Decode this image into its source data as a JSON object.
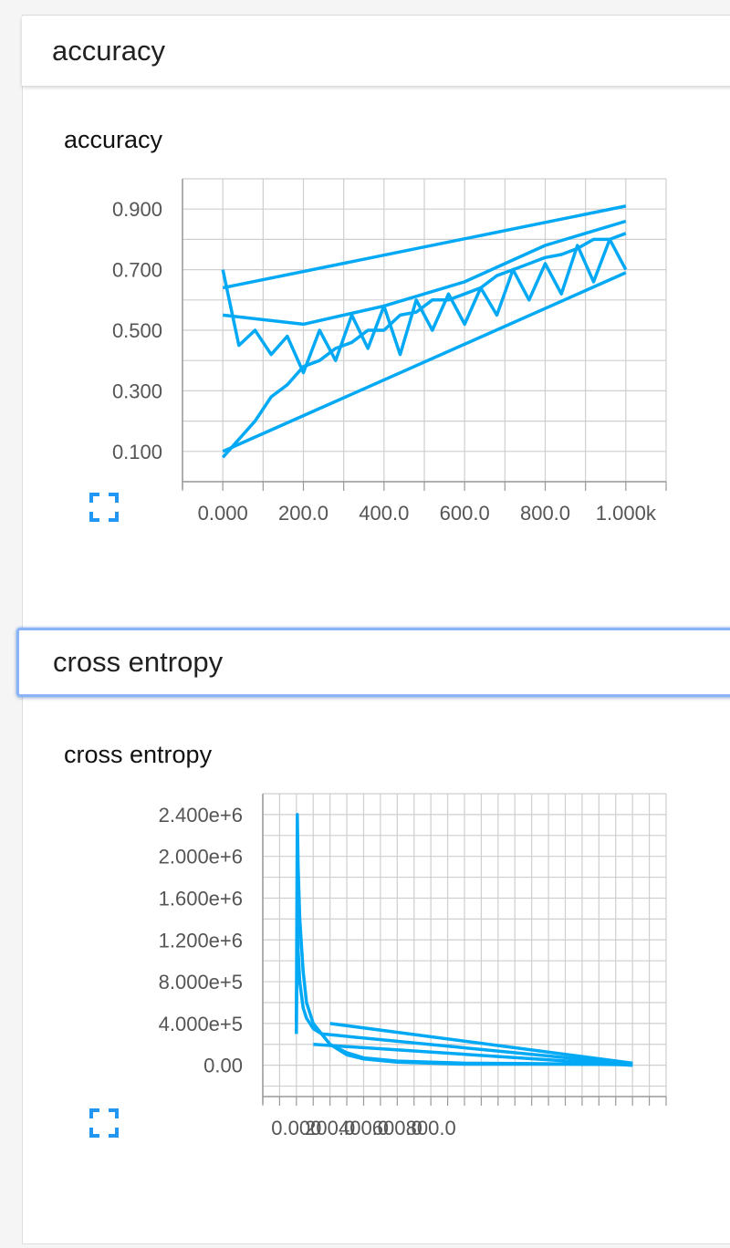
{
  "colors": {
    "line": "#03a9f4",
    "grid": "#cfcfcf",
    "axis": "#999999",
    "focus": "#8ab4f8",
    "icon": "#2196f3"
  },
  "cards": [
    {
      "header": "accuracy",
      "chart_title": "accuracy",
      "focused": false,
      "expand_icon": "fullscreen-icon"
    },
    {
      "header": "cross entropy",
      "chart_title": "cross entropy",
      "focused": true,
      "expand_icon": "fullscreen-icon"
    }
  ],
  "chart_data": [
    {
      "type": "line",
      "title": "accuracy",
      "xlabel": "",
      "ylabel": "",
      "xlim": [
        -100,
        1100
      ],
      "ylim": [
        0.0,
        1.0
      ],
      "x_ticks": [
        {
          "value": 0,
          "label": "0.000"
        },
        {
          "value": 200,
          "label": "200.0"
        },
        {
          "value": 400,
          "label": "400.0"
        },
        {
          "value": 600,
          "label": "600.0"
        },
        {
          "value": 800,
          "label": "800.0"
        },
        {
          "value": 1000,
          "label": "1.000k"
        }
      ],
      "y_ticks": [
        {
          "value": 0.1,
          "label": "0.100"
        },
        {
          "value": 0.3,
          "label": "0.300"
        },
        {
          "value": 0.5,
          "label": "0.500"
        },
        {
          "value": 0.7,
          "label": "0.700"
        },
        {
          "value": 0.9,
          "label": "0.900"
        }
      ],
      "grid": true,
      "series": [
        {
          "x": [
            0,
            40,
            80,
            120,
            160,
            200,
            240,
            280,
            320,
            360,
            400,
            440,
            480,
            520,
            560,
            600,
            640,
            680,
            720,
            760,
            800,
            840,
            880,
            920,
            960,
            1000
          ],
          "y": [
            0.08,
            0.14,
            0.2,
            0.28,
            0.32,
            0.38,
            0.4,
            0.44,
            0.46,
            0.5,
            0.5,
            0.55,
            0.56,
            0.6,
            0.6,
            0.62,
            0.64,
            0.68,
            0.7,
            0.72,
            0.74,
            0.75,
            0.77,
            0.8,
            0.8,
            0.82
          ]
        },
        {
          "x": [
            0,
            40,
            80,
            120,
            160,
            200,
            240,
            280,
            320,
            360,
            400,
            440,
            480,
            520,
            560,
            600,
            640,
            680,
            720,
            760,
            800,
            840,
            880,
            920,
            960,
            1000
          ],
          "y": [
            0.7,
            0.45,
            0.5,
            0.42,
            0.48,
            0.36,
            0.5,
            0.4,
            0.55,
            0.44,
            0.58,
            0.42,
            0.6,
            0.5,
            0.62,
            0.52,
            0.64,
            0.55,
            0.7,
            0.6,
            0.72,
            0.62,
            0.78,
            0.66,
            0.8,
            0.7
          ]
        },
        {
          "x": [
            0,
            1000
          ],
          "y": [
            0.64,
            0.91
          ]
        },
        {
          "x": [
            0,
            1000
          ],
          "y": [
            0.1,
            0.69
          ]
        },
        {
          "x": [
            0,
            200,
            400,
            600,
            800,
            1000
          ],
          "y": [
            0.55,
            0.52,
            0.58,
            0.66,
            0.78,
            0.86
          ]
        }
      ]
    },
    {
      "type": "line",
      "title": "cross entropy",
      "xlabel": "",
      "ylabel": "",
      "xlim": [
        -200,
        2200
      ],
      "ylim": [
        -300000,
        2600000
      ],
      "x_ticks": [
        {
          "value": 0,
          "label": "0.000"
        },
        {
          "value": 200,
          "label": "200.0"
        },
        {
          "value": 400,
          "label": "400.0"
        },
        {
          "value": 600,
          "label": "600.0"
        },
        {
          "value": 800,
          "label": "800.0"
        }
      ],
      "y_ticks": [
        {
          "value": 0,
          "label": "0.00"
        },
        {
          "value": 400000,
          "label": "4.000e+5"
        },
        {
          "value": 800000,
          "label": "8.000e+5"
        },
        {
          "value": 1200000,
          "label": "1.200e+6"
        },
        {
          "value": 1600000,
          "label": "1.600e+6"
        },
        {
          "value": 2000000,
          "label": "2.000e+6"
        },
        {
          "value": 2400000,
          "label": "2.400e+6"
        }
      ],
      "grid": true,
      "series": [
        {
          "x": [
            0,
            5,
            10,
            20,
            40,
            60,
            100,
            150,
            200,
            300,
            400,
            600,
            800,
            1000,
            1400,
            1800,
            2000
          ],
          "y": [
            400000,
            2400000,
            1900000,
            1400000,
            900000,
            600000,
            400000,
            300000,
            200000,
            100000,
            60000,
            30000,
            20000,
            10000,
            10000,
            8000,
            5000
          ]
        },
        {
          "x": [
            0,
            5,
            10,
            20,
            40,
            60,
            100,
            150,
            200,
            300,
            400,
            600,
            800,
            1000,
            1400,
            1800,
            2000
          ],
          "y": [
            300000,
            1500000,
            1100000,
            800000,
            550000,
            450000,
            350000,
            300000,
            200000,
            120000,
            70000,
            40000,
            30000,
            20000,
            15000,
            10000,
            8000
          ]
        },
        {
          "x": [
            200,
            2000
          ],
          "y": [
            400000,
            20000
          ]
        },
        {
          "x": [
            150,
            2000
          ],
          "y": [
            300000,
            10000
          ]
        },
        {
          "x": [
            100,
            2000
          ],
          "y": [
            200000,
            0
          ]
        }
      ]
    }
  ]
}
